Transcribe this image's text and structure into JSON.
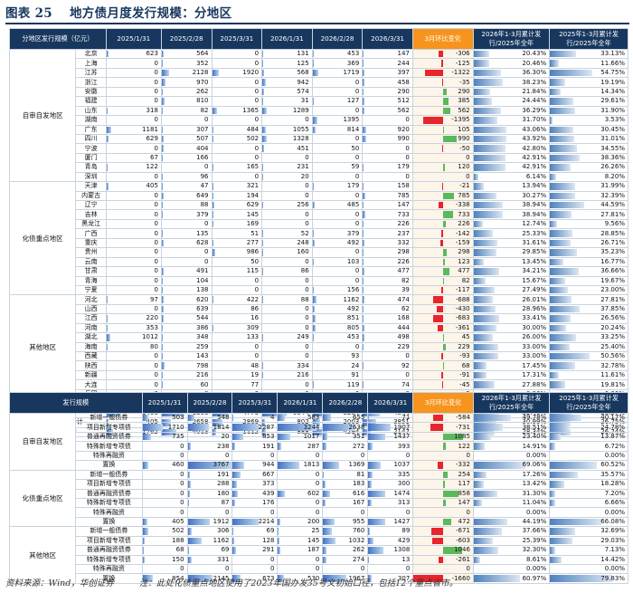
{
  "title": {
    "figure": "图表 25",
    "text": "地方债月度发行规模：分地区"
  },
  "footer": {
    "source": "资料来源：Wind，华创证券",
    "note": "注：此处化债重点地区使用了2023年国办发35号文初始口径，包括12个重点省市。"
  },
  "table1": {
    "headers": [
      "分地区发行规模（亿元）",
      "2025/1/31",
      "2025/2/28",
      "2025/3/31",
      "2026/1/31",
      "2026/2/28",
      "2026/3/31",
      "3月环比变化",
      "2026年1-3月累计发行/2025年全年",
      "2025年1-3月累计发行/2025年全年"
    ],
    "groups": [
      {
        "name": "自审自发地区",
        "rows": [
          [
            "北京",
            "623",
            "564",
            "0",
            "131",
            "453",
            "147",
            "-306",
            "20.43%",
            "33.13%"
          ],
          [
            "上海",
            "0",
            "352",
            "0",
            "125",
            "369",
            "244",
            "-125",
            "20.46%",
            "11.66%"
          ],
          [
            "江苏",
            "0",
            "2128",
            "1920",
            "568",
            "1719",
            "397",
            "-1322",
            "36.30%",
            "54.75%"
          ],
          [
            "浙江",
            "0",
            "970",
            "0",
            "942",
            "0",
            "458",
            "-35",
            "38.23%",
            "19.19%"
          ],
          [
            "安徽",
            "0",
            "262",
            "0",
            "574",
            "0",
            "290",
            "290",
            "21.84%",
            "14.34%"
          ],
          [
            "福建",
            "0",
            "810",
            "0",
            "31",
            "127",
            "512",
            "385",
            "24.44%",
            "29.61%"
          ],
          [
            "山东",
            "318",
            "82",
            "1365",
            "1289",
            "0",
            "562",
            "562",
            "36.29%",
            "31.90%"
          ],
          [
            "湖南",
            "0",
            "0",
            "0",
            "0",
            "1395",
            "0",
            "-1395",
            "31.70%",
            "3.53%"
          ],
          [
            "广东",
            "1181",
            "307",
            "484",
            "1055",
            "814",
            "920",
            "105",
            "43.06%",
            "30.45%"
          ],
          [
            "四川",
            "629",
            "507",
            "502",
            "1328",
            "0",
            "990",
            "990",
            "43.92%",
            "31.01%"
          ],
          [
            "宁波",
            "0",
            "404",
            "0",
            "451",
            "50",
            "0",
            "-50",
            "42.80%",
            "34.55%"
          ],
          [
            "厦门",
            "67",
            "166",
            "0",
            "0",
            "0",
            "0",
            "0",
            "42.91%",
            "38.36%"
          ],
          [
            "青岛",
            "122",
            "0",
            "165",
            "231",
            "59",
            "179",
            "120",
            "42.91%",
            "26.26%"
          ],
          [
            "深圳",
            "0",
            "96",
            "0",
            "20",
            "0",
            "0",
            "0",
            "6.14%",
            "8.20%"
          ]
        ]
      },
      {
        "name": "化债重点地区",
        "rows": [
          [
            "天津",
            "405",
            "47",
            "321",
            "0",
            "179",
            "158",
            "-21",
            "13.94%",
            "31.99%"
          ],
          [
            "内蒙古",
            "0",
            "649",
            "194",
            "0",
            "0",
            "785",
            "785",
            "30.27%",
            "32.39%"
          ],
          [
            "辽宁",
            "0",
            "88",
            "629",
            "256",
            "485",
            "147",
            "-338",
            "38.94%",
            "44.59%"
          ],
          [
            "吉林",
            "0",
            "379",
            "145",
            "0",
            "0",
            "733",
            "733",
            "38.94%",
            "27.81%"
          ],
          [
            "黑龙江",
            "0",
            "0",
            "169",
            "0",
            "0",
            "226",
            "226",
            "12.74%",
            "9.56%"
          ],
          [
            "广西",
            "0",
            "135",
            "51",
            "52",
            "379",
            "237",
            "-142",
            "25.33%",
            "28.85%"
          ],
          [
            "重庆",
            "0",
            "628",
            "277",
            "248",
            "492",
            "332",
            "-159",
            "31.61%",
            "26.71%"
          ],
          [
            "贵州",
            "0",
            "0",
            "986",
            "160",
            "0",
            "298",
            "298",
            "29.85%",
            "35.23%"
          ],
          [
            "云南",
            "0",
            "0",
            "50",
            "0",
            "103",
            "226",
            "123",
            "13.45%",
            "16.77%"
          ],
          [
            "甘肃",
            "0",
            "491",
            "115",
            "86",
            "0",
            "477",
            "477",
            "34.21%",
            "36.66%"
          ],
          [
            "青海",
            "0",
            "104",
            "0",
            "0",
            "0",
            "82",
            "82",
            "15.67%",
            "19.67%"
          ],
          [
            "宁夏",
            "0",
            "138",
            "0",
            "0",
            "156",
            "39",
            "-117",
            "27.49%",
            "23.00%"
          ]
        ]
      },
      {
        "name": "其他地区",
        "rows": [
          [
            "河北",
            "97",
            "620",
            "422",
            "88",
            "1162",
            "474",
            "-688",
            "26.01%",
            "27.81%"
          ],
          [
            "山西",
            "0",
            "639",
            "86",
            "0",
            "492",
            "62",
            "-430",
            "28.96%",
            "37.85%"
          ],
          [
            "江西",
            "220",
            "544",
            "16",
            "0",
            "851",
            "168",
            "-683",
            "33.41%",
            "26.56%"
          ],
          [
            "河南",
            "353",
            "386",
            "309",
            "0",
            "805",
            "444",
            "-361",
            "30.00%",
            "20.24%"
          ],
          [
            "湖北",
            "1012",
            "348",
            "133",
            "249",
            "453",
            "498",
            "45",
            "26.00%",
            "33.25%"
          ],
          [
            "海南",
            "80",
            "259",
            "0",
            "0",
            "0",
            "229",
            "229",
            "33.00%",
            "25.40%"
          ],
          [
            "西藏",
            "0",
            "143",
            "0",
            "0",
            "93",
            "0",
            "-93",
            "33.00%",
            "50.56%"
          ],
          [
            "陕西",
            "0",
            "798",
            "48",
            "334",
            "24",
            "92",
            "68",
            "17.45%",
            "32.78%"
          ],
          [
            "新疆",
            "0",
            "216",
            "19",
            "216",
            "91",
            "0",
            "-91",
            "17.31%",
            "11.61%"
          ],
          [
            "大连",
            "0",
            "60",
            "77",
            "0",
            "119",
            "74",
            "-45",
            "27.88%",
            "19.81%"
          ],
          [
            "兵团",
            "0",
            "0",
            "0",
            "0",
            "0",
            "0",
            "0",
            "0.00%",
            "0.00%"
          ]
        ]
      }
    ],
    "sums": [
      [
        "全部地区合计",
        "5576",
        "13957",
        "9788",
        "8633",
        "11582",
        "10843",
        "-739",
        "30.82%",
        "27.57%"
      ],
      [
        "自审自发合计",
        "3408",
        "6386",
        "4779",
        "6944",
        "5284",
        "4844",
        "-440",
        "33.46%",
        "28.57%"
      ],
      [
        "化债重点地区合计",
        "405",
        "2658",
        "2869",
        "802",
        "2003",
        "3851",
        "1848",
        "30.99%",
        "26.75%"
      ],
      [
        "其他地区合计",
        "1762",
        "4013",
        "1112",
        "888",
        "4294",
        "2147",
        "-2147",
        "28.34%",
        "26.74%"
      ]
    ]
  },
  "table2": {
    "headers": [
      "发行规模",
      "2025/1/31",
      "2025/2/28",
      "2025/3/31",
      "2026/1/31",
      "2026/2/28",
      "2026/3/31",
      "3月环比变化",
      "2026年1-3月累计发行/2025年全年",
      "2025年1-3月累计发行/2025年全年"
    ],
    "groups": [
      {
        "name": "自审自发地区",
        "rows": [
          [
            "新增一般债券",
            "503",
            "548",
            "4",
            "583",
            "655",
            "71",
            "-584",
            "49.78%",
            "40.17%"
          ],
          [
            "项目新增专项债",
            "1710",
            "1814",
            "2287",
            "3244",
            "2638",
            "1907",
            "-731",
            "38.51%",
            "24.78%"
          ],
          [
            "普通再融资债券",
            "735",
            "20",
            "853",
            "1017",
            "351",
            "1437",
            "1085",
            "23.40%",
            "13.87%"
          ],
          [
            "特殊新增专项债",
            "0",
            "238",
            "191",
            "287",
            "272",
            "393",
            "122",
            "14.91%",
            "6.72%"
          ],
          [
            "特殊再融资",
            "0",
            "0",
            "0",
            "0",
            "0",
            "0",
            "0",
            "0.00%",
            "0.00%"
          ],
          [
            "置换",
            "460",
            "3767",
            "944",
            "1813",
            "1369",
            "1037",
            "-332",
            "69.06%",
            "60.52%"
          ]
        ]
      },
      {
        "name": "化债重点地区",
        "rows": [
          [
            "新增一般债券",
            "0",
            "191",
            "667",
            "0",
            "81",
            "335",
            "254",
            "17.26%",
            "35.57%"
          ],
          [
            "项目新增专项债",
            "0",
            "288",
            "373",
            "0",
            "183",
            "300",
            "117",
            "13.42%",
            "18.28%"
          ],
          [
            "普通再融资债券",
            "0",
            "180",
            "439",
            "602",
            "616",
            "1474",
            "858",
            "31.30%",
            "7.20%"
          ],
          [
            "特殊新增专项债",
            "0",
            "87",
            "176",
            "0",
            "167",
            "313",
            "147",
            "11.04%",
            "6.66%"
          ],
          [
            "特殊再融资",
            "0",
            "0",
            "0",
            "0",
            "0",
            "0",
            "0",
            "0.00%",
            "0.00%"
          ],
          [
            "置换",
            "405",
            "1912",
            "2214",
            "200",
            "955",
            "1427",
            "472",
            "44.19%",
            "66.08%"
          ]
        ]
      },
      {
        "name": "其他地区",
        "rows": [
          [
            "新增一般债券",
            "502",
            "306",
            "69",
            "25",
            "760",
            "89",
            "-671",
            "37.66%",
            "32.69%"
          ],
          [
            "项目新增专项债",
            "188",
            "1162",
            "128",
            "145",
            "1032",
            "429",
            "-603",
            "25.39%",
            "29.03%"
          ],
          [
            "普通再融资债券",
            "68",
            "69",
            "291",
            "187",
            "262",
            "1308",
            "1046",
            "32.30%",
            "7.13%"
          ],
          [
            "特殊新增专项债",
            "150",
            "331",
            "0",
            "0",
            "274",
            "13",
            "-261",
            "8.61%",
            "14.42%"
          ],
          [
            "特殊再融资",
            "0",
            "0",
            "0",
            "0",
            "0",
            "0",
            "0",
            "0.00%",
            "0.00%"
          ],
          [
            "置换",
            "854",
            "2145",
            "673",
            "530",
            "1967",
            "307",
            "-1660",
            "60.97%",
            "79.83%"
          ]
        ]
      }
    ]
  },
  "colors": {
    "header": "#17375e",
    "change_header": "#f7941d",
    "negative": "#e8242c",
    "positive": "#5cb85c",
    "bar": "#4472c4"
  }
}
